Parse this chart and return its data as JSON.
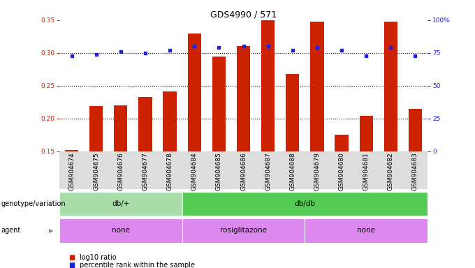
{
  "title": "GDS4990 / 571",
  "samples": [
    "GSM904674",
    "GSM904675",
    "GSM904676",
    "GSM904677",
    "GSM904678",
    "GSM904684",
    "GSM904685",
    "GSM904686",
    "GSM904687",
    "GSM904688",
    "GSM904679",
    "GSM904680",
    "GSM904681",
    "GSM904682",
    "GSM904683"
  ],
  "log10_ratio": [
    0.152,
    0.219,
    0.22,
    0.233,
    0.241,
    0.33,
    0.294,
    0.31,
    0.35,
    0.268,
    0.348,
    0.175,
    0.204,
    0.348,
    0.215
  ],
  "percentile_rank": [
    73,
    74,
    76,
    75,
    77,
    80,
    79,
    80,
    80,
    77,
    79,
    77,
    73,
    79,
    73
  ],
  "ylim_left": [
    0.15,
    0.35
  ],
  "ylim_right": [
    0,
    100
  ],
  "yticks_left": [
    0.15,
    0.2,
    0.25,
    0.3,
    0.35
  ],
  "yticks_right": [
    0,
    25,
    50,
    75,
    100
  ],
  "bar_color": "#cc2200",
  "dot_color": "#2222cc",
  "bg_color": "#ffffff",
  "genotype_groups": [
    {
      "label": "db/+",
      "start": 0,
      "end": 5,
      "color": "#aaddaa"
    },
    {
      "label": "db/db",
      "start": 5,
      "end": 15,
      "color": "#55cc55"
    }
  ],
  "agent_color": "#dd88ee",
  "agent_groups": [
    {
      "label": "none",
      "start": 0,
      "end": 5
    },
    {
      "label": "rosiglitazone",
      "start": 5,
      "end": 10
    },
    {
      "label": "none",
      "start": 10,
      "end": 15
    }
  ],
  "title_fontsize": 9,
  "tick_fontsize": 6.5,
  "label_fontsize": 7,
  "annot_fontsize": 7.5,
  "legend_fontsize": 7
}
